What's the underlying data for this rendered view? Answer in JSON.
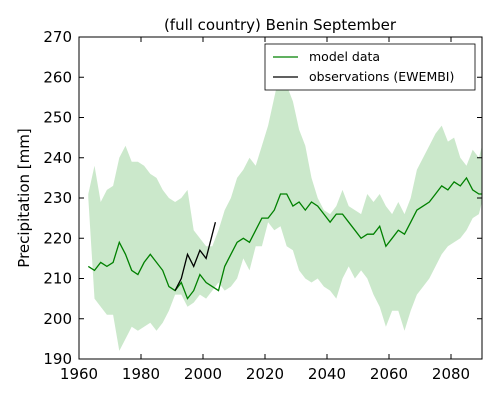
{
  "chart_data": {
    "type": "line",
    "title": "(full country) Benin September",
    "xlabel": "",
    "ylabel": "Precipitation [mm]",
    "xlim": [
      1960,
      2090
    ],
    "ylim": [
      190,
      270
    ],
    "xticks": [
      1960,
      1980,
      2000,
      2020,
      2040,
      2060,
      2080
    ],
    "yticks": [
      190,
      200,
      210,
      220,
      230,
      240,
      250,
      260,
      270
    ],
    "grid": false,
    "legend": {
      "position": "top-right",
      "entries": [
        "model data",
        "observations (EWEMBI)"
      ]
    },
    "colors": {
      "model": "#008000",
      "band": "#a9d9a9",
      "observations": "#000000"
    },
    "series": [
      {
        "name": "model data",
        "x": [
          1963,
          1965,
          1967,
          1969,
          1971,
          1973,
          1975,
          1977,
          1979,
          1981,
          1983,
          1985,
          1987,
          1989,
          1991,
          1993,
          1995,
          1997,
          1999,
          2001,
          2003,
          2005,
          2007,
          2009,
          2011,
          2013,
          2015,
          2017,
          2019,
          2021,
          2023,
          2025,
          2027,
          2029,
          2031,
          2033,
          2035,
          2037,
          2039,
          2041,
          2043,
          2045,
          2047,
          2049,
          2051,
          2053,
          2055,
          2057,
          2059,
          2061,
          2063,
          2065,
          2067,
          2069,
          2071,
          2073,
          2075,
          2077,
          2079,
          2081,
          2083,
          2085,
          2087,
          2089,
          2090
        ],
        "values": [
          213,
          212,
          214,
          213,
          214,
          219,
          216,
          212,
          211,
          214,
          216,
          214,
          212,
          208,
          207,
          209,
          205,
          207,
          211,
          209,
          208,
          207,
          213,
          216,
          219,
          220,
          219,
          222,
          225,
          225,
          227,
          231,
          231,
          228,
          229,
          227,
          229,
          228,
          226,
          224,
          226,
          226,
          224,
          222,
          220,
          221,
          221,
          223,
          218,
          220,
          222,
          221,
          224,
          227,
          228,
          229,
          231,
          233,
          232,
          234,
          233,
          235,
          232,
          231,
          231
        ],
        "lower": [
          230,
          205,
          203,
          201,
          201,
          192,
          195,
          198,
          197,
          198,
          199,
          197,
          199,
          202,
          206,
          206,
          203,
          204,
          206,
          205,
          207,
          209,
          207,
          208,
          210,
          215,
          212,
          218,
          218,
          224,
          222,
          223,
          218,
          217,
          212,
          210,
          209,
          210,
          208,
          207,
          205,
          210,
          213,
          210,
          212,
          210,
          206,
          203,
          198,
          202,
          202,
          197,
          202,
          206,
          208,
          210,
          213,
          216,
          218,
          219,
          220,
          222,
          225,
          226,
          229
        ],
        "upper": [
          231,
          238,
          229,
          232,
          233,
          240,
          243,
          239,
          239,
          238,
          236,
          235,
          232,
          230,
          229,
          230,
          232,
          222,
          220,
          218,
          218,
          222,
          227,
          230,
          235,
          237,
          240,
          238,
          243,
          248,
          255,
          262,
          258,
          254,
          247,
          243,
          235,
          230,
          227,
          226,
          228,
          232,
          228,
          227,
          226,
          231,
          229,
          231,
          228,
          226,
          229,
          226,
          230,
          237,
          240,
          243,
          246,
          248,
          244,
          245,
          240,
          238,
          242,
          240,
          243
        ]
      },
      {
        "name": "observations (EWEMBI)",
        "x": [
          1991,
          1993,
          1995,
          1997,
          1999,
          2001,
          2003,
          2004
        ],
        "values": [
          207,
          210,
          216,
          213,
          217,
          215,
          221,
          224
        ]
      }
    ]
  }
}
